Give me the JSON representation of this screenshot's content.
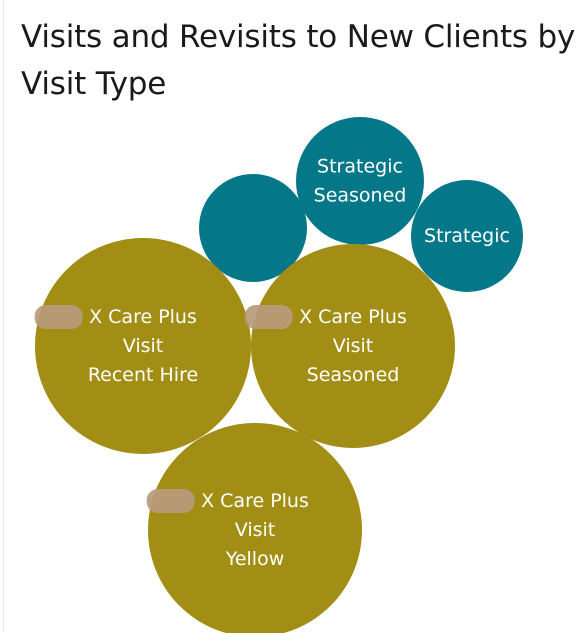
{
  "chart_data": {
    "type": "packed-bubble",
    "title": "Visits and Revisits to New Clients by Visit Type",
    "colors": {
      "teal": "#047888",
      "olive": "#a28e14",
      "redaction": "#b89a7c"
    },
    "bubbles": [
      {
        "id": "strategic-seasoned",
        "lines": [
          "Strategic",
          "Seasoned"
        ],
        "size": 16,
        "color": "teal",
        "redacted_prefix": false
      },
      {
        "id": "unlabeled-teal",
        "lines": [],
        "size": 11,
        "color": "teal",
        "redacted_prefix": false
      },
      {
        "id": "strategic",
        "lines": [
          "Strategic"
        ],
        "size": 12,
        "color": "teal",
        "redacted_prefix": false
      },
      {
        "id": "care-plus-recent-hire",
        "lines": [
          "X Care Plus",
          "Visit",
          "Recent Hire"
        ],
        "size": 46,
        "color": "olive",
        "redacted_prefix": true
      },
      {
        "id": "care-plus-seasoned",
        "lines": [
          "X Care Plus",
          "Visit",
          "Seasoned"
        ],
        "size": 41,
        "color": "olive",
        "redacted_prefix": true
      },
      {
        "id": "care-plus-yellow",
        "lines": [
          "X Care Plus",
          "Visit",
          "Yellow"
        ],
        "size": 45,
        "color": "olive",
        "redacted_prefix": true
      }
    ]
  }
}
